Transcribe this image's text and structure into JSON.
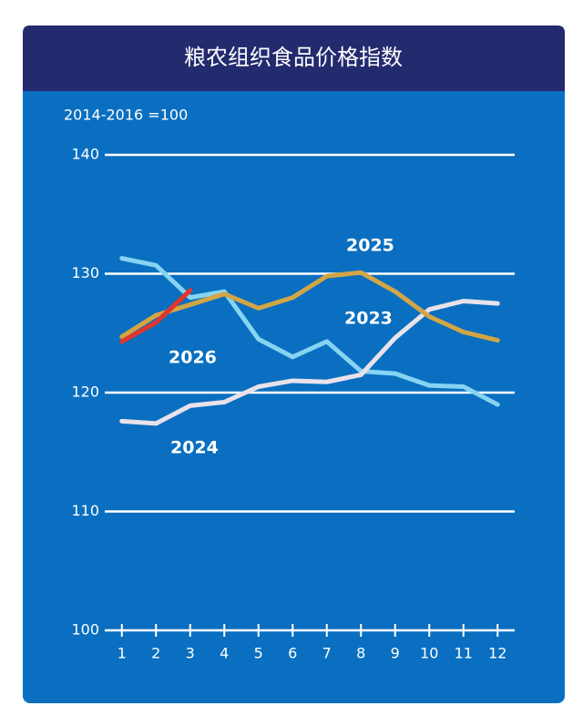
{
  "chart_data": {
    "type": "line",
    "title": "粮农组织食品价格指数",
    "subtitle": "2014-2016 =100",
    "x": [
      1,
      2,
      3,
      4,
      5,
      6,
      7,
      8,
      9,
      10,
      11,
      12
    ],
    "xlim": [
      0.5,
      12.5
    ],
    "xticks": [
      1,
      2,
      3,
      4,
      5,
      6,
      7,
      8,
      9,
      10,
      11,
      12
    ],
    "ylim": [
      100,
      140
    ],
    "yticks": [
      100,
      110,
      120,
      130,
      140
    ],
    "grid": true,
    "series": [
      {
        "name": "2023",
        "color": "#86d4f2",
        "values": [
          131.3,
          130.7,
          128.0,
          128.5,
          124.5,
          123.0,
          124.3,
          121.8,
          121.6,
          120.6,
          120.5,
          119.0
        ]
      },
      {
        "name": "2024",
        "color": "#e9e2ea",
        "values": [
          117.6,
          117.4,
          118.9,
          119.2,
          120.5,
          121.0,
          120.9,
          121.5,
          124.6,
          127.0,
          127.7,
          127.5
        ]
      },
      {
        "name": "2025",
        "color": "#d3a545",
        "values": [
          124.7,
          126.5,
          127.4,
          128.3,
          127.1,
          128.0,
          129.8,
          130.1,
          128.5,
          126.4,
          125.1,
          124.4
        ]
      },
      {
        "name": "2026",
        "color": "#e0362c",
        "values": [
          124.3,
          125.9,
          128.6,
          null,
          null,
          null,
          null,
          null,
          null,
          null,
          null,
          null
        ]
      }
    ]
  }
}
